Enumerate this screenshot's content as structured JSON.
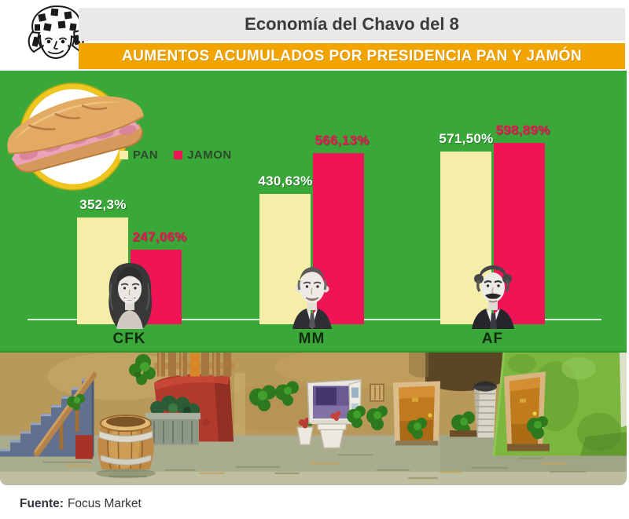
{
  "header": {
    "title": "Economía del Chavo del 8",
    "banner": "AUMENTOS ACUMULADOS POR PRESIDENCIA PAN Y JAMÓN",
    "banner_color": "#F2A400",
    "title_bar_color": "#E9E9E9"
  },
  "legend": {
    "items": [
      {
        "label": "PAN",
        "color": "#F4EEA8"
      },
      {
        "label": "JAMON",
        "color": "#EE1456"
      }
    ]
  },
  "chart_data": {
    "type": "bar",
    "title": "AUMENTOS ACUMULADOS POR PRESIDENCIA PAN Y JAMÓN",
    "categories": [
      "CFK",
      "MM",
      "AF"
    ],
    "series": [
      {
        "name": "PAN",
        "color": "#F4EEA8",
        "values": [
          352.3,
          430.63,
          571.5
        ],
        "value_labels": [
          "352,3%",
          "430,63%",
          "571,50%"
        ],
        "label_color": "#FFFFFF"
      },
      {
        "name": "JAMON",
        "color": "#EE1456",
        "values": [
          247.06,
          566.13,
          598.89
        ],
        "value_labels": [
          "247,06%",
          "566,13%",
          "598,89%"
        ],
        "label_color": "#EE1456"
      }
    ],
    "unit": "%",
    "ylim": [
      0,
      620
    ],
    "grid": false,
    "plot_background": "#3AA838",
    "legend_position": "top-left",
    "category_portraits": [
      "cfk-portrait",
      "mm-portrait",
      "af-portrait"
    ]
  },
  "footer": {
    "source_label": "Fuente:",
    "source_value": "Focus Market"
  },
  "illustrations": {
    "mascot": "chavo-face-sketch",
    "badge": "ham-sandwich-badge",
    "scene": "vecindad-patio-scene",
    "scene_elements": [
      "staircase",
      "wood-railing",
      "red-wall",
      "wood-fence",
      "barrel",
      "stone-planter",
      "window-purple",
      "flower-pots",
      "orange-door-1",
      "trash-can",
      "green-wall",
      "orange-door-2",
      "bushes"
    ]
  }
}
